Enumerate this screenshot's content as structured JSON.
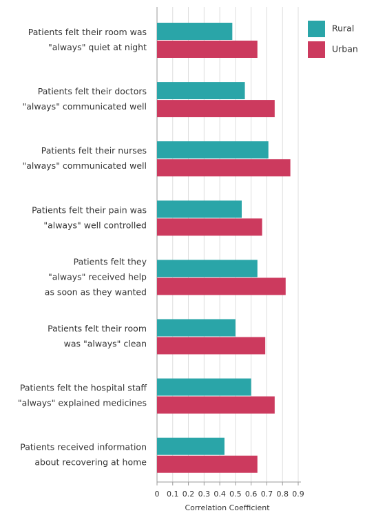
{
  "chart_data": {
    "type": "bar",
    "orientation": "horizontal",
    "x_label": "Correlation Coefficient",
    "categories": [
      [
        "Patients felt their room was",
        "\"always\" quiet at night"
      ],
      [
        "Patients felt their doctors",
        "\"always\" communicated well"
      ],
      [
        "Patients felt their nurses",
        "\"always\" communicated well"
      ],
      [
        "Patients felt their pain was",
        "\"always\" well controlled"
      ],
      [
        "Patients felt they",
        "\"always\" received help",
        "as soon as they wanted"
      ],
      [
        "Patients felt their room",
        "was \"always\" clean"
      ],
      [
        "Patients felt the hospital staff",
        "\"always\" explained medicines"
      ],
      [
        "Patients received information",
        "about recovering at home"
      ]
    ],
    "series": [
      {
        "name": "Rural",
        "color": "#2aa5a8",
        "values": [
          0.48,
          0.56,
          0.71,
          0.54,
          0.64,
          0.5,
          0.6,
          0.43
        ]
      },
      {
        "name": "Urban",
        "color": "#cc3a5e",
        "values": [
          0.64,
          0.75,
          0.85,
          0.67,
          0.82,
          0.69,
          0.75,
          0.64
        ]
      }
    ],
    "xlim": [
      0,
      0.9
    ],
    "xticks": [
      0,
      0.1,
      0.2,
      0.3,
      0.4,
      0.5,
      0.6,
      0.7,
      0.8,
      0.9
    ],
    "grid": true,
    "legend": "top-right"
  }
}
